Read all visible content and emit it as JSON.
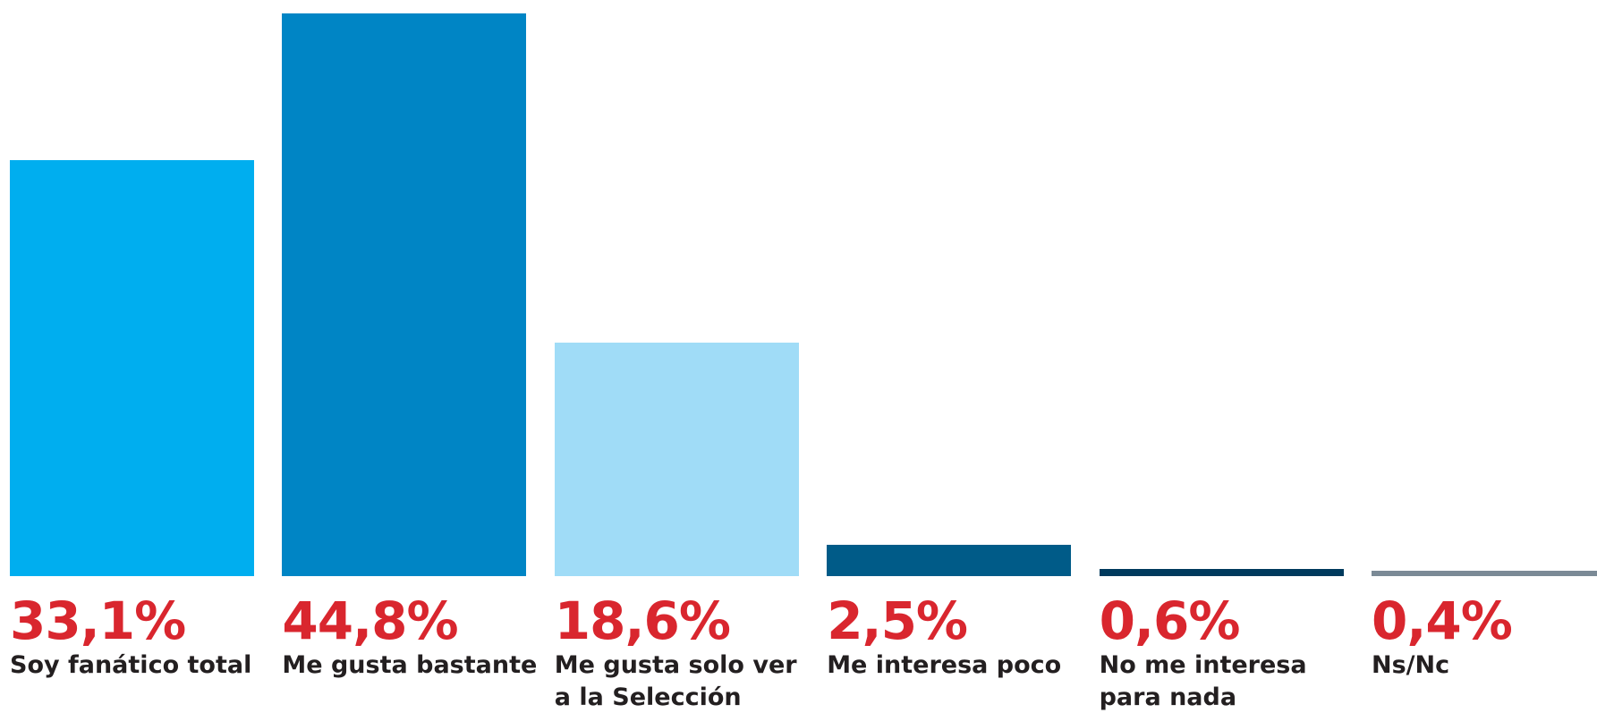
{
  "chart_data": {
    "type": "bar",
    "categories": [
      "Soy fanático total",
      "Me gusta bastante",
      "Me gusta solo ver a la Selección",
      "Me interesa poco",
      "No me interesa para nada",
      "Ns/Nc"
    ],
    "values": [
      33.1,
      44.8,
      18.6,
      2.5,
      0.6,
      0.4
    ],
    "value_labels": [
      "33,1%",
      "44,8%",
      "18,6%",
      "2,5%",
      "0,6%",
      "0,4%"
    ],
    "colors": [
      "#00aeef",
      "#0085c5",
      "#a0dcf7",
      "#005b88",
      "#003a5d",
      "#7b8a96"
    ],
    "ylim": [
      0,
      45
    ]
  }
}
